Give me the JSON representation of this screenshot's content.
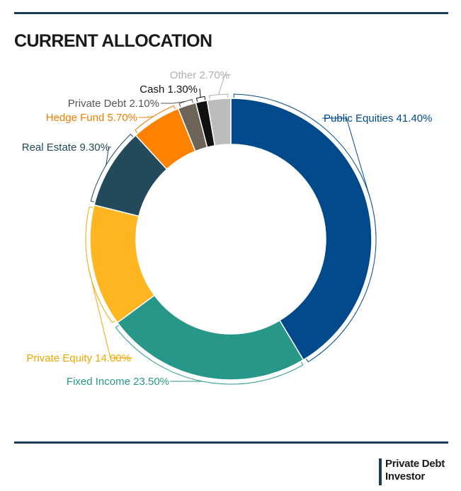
{
  "title": "CURRENT ALLOCATION",
  "brand": {
    "line1": "Private Debt",
    "line2": "Investor"
  },
  "chart_data": {
    "type": "pie",
    "variant": "donut",
    "start": "12 o'clock",
    "direction": "clockwise",
    "series": [
      {
        "name": "Public Equities",
        "value": 41.4,
        "label": "Public Equities 41.40%",
        "color": "#004a8b"
      },
      {
        "name": "Fixed Income",
        "value": 23.5,
        "label": "Fixed Income 23.50%",
        "color": "#27978a"
      },
      {
        "name": "Private Equity",
        "value": 14.0,
        "label": "Private Equity 14.00%",
        "color": "#fdb61f"
      },
      {
        "name": "Real Estate",
        "value": 9.3,
        "label": "Real Estate 9.30%",
        "color": "#234a5b"
      },
      {
        "name": "Hedge Fund",
        "value": 5.7,
        "label": "Hedge Fund 5.70%",
        "color": "#fe8200"
      },
      {
        "name": "Private Debt",
        "value": 2.1,
        "label": "Private Debt 2.10%",
        "color": "#6e6357"
      },
      {
        "name": "Cash",
        "value": 1.3,
        "label": "Cash 1.30%",
        "color": "#111111"
      },
      {
        "name": "Other",
        "value": 2.7,
        "label": "Other 2.70%",
        "color": "#bcbcbc"
      }
    ],
    "label_colors": {
      "Public Equities": "#004a8b",
      "Fixed Income": "#27978a",
      "Private Equity": "#f0a800",
      "Real Estate": "#234a5b",
      "Hedge Fund": "#f27d00",
      "Private Debt": "#555555",
      "Cash": "#111111",
      "Other": "#b0b0b0"
    }
  }
}
